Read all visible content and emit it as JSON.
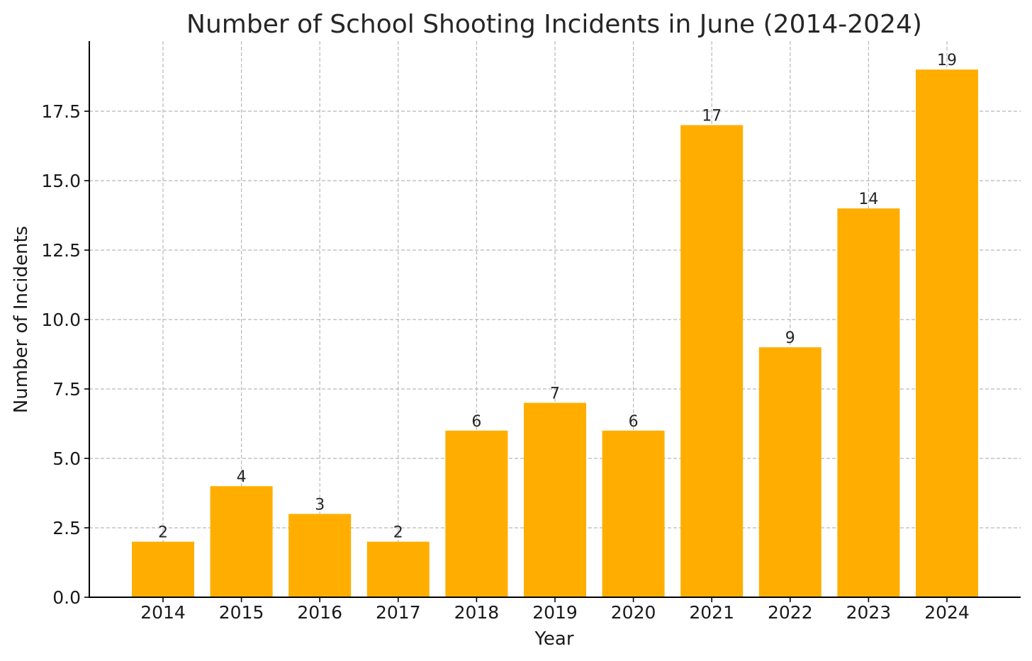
{
  "chart_data": {
    "type": "bar",
    "title": "Number of School Shooting Incidents in June (2014-2024)",
    "xlabel": "Year",
    "ylabel": "Number of Incidents",
    "categories": [
      "2014",
      "2015",
      "2016",
      "2017",
      "2018",
      "2019",
      "2020",
      "2021",
      "2022",
      "2023",
      "2024"
    ],
    "values": [
      2,
      4,
      3,
      2,
      6,
      7,
      6,
      17,
      9,
      14,
      19
    ],
    "data_labels": [
      "2",
      "4",
      "3",
      "2",
      "6",
      "7",
      "6",
      "17",
      "9",
      "14",
      "19"
    ],
    "ylim": [
      0,
      20
    ],
    "yticks": [
      0.0,
      2.5,
      5.0,
      7.5,
      10.0,
      12.5,
      15.0,
      17.5
    ],
    "ytick_labels": [
      "0.0",
      "2.5",
      "5.0",
      "7.5",
      "10.0",
      "12.5",
      "15.0",
      "17.5"
    ],
    "grid": true,
    "bar_color": "#FFAE00",
    "grid_color": "#B8B8B8"
  }
}
